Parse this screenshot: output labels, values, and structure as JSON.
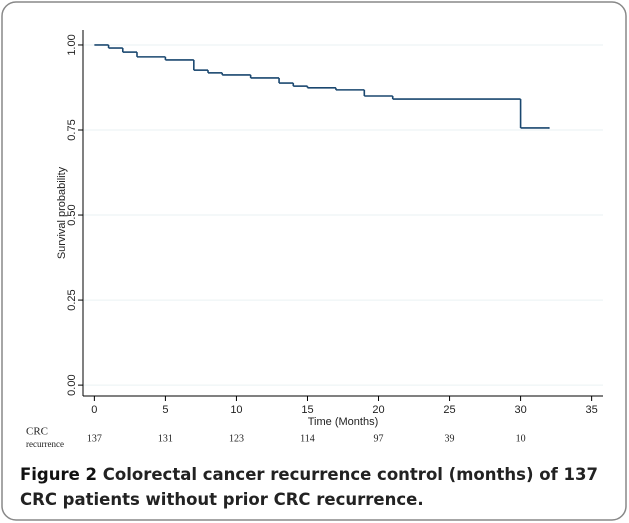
{
  "chart_data": {
    "type": "line",
    "step": "post",
    "x_label": "Time (Months)",
    "y_label": "Survival probability",
    "series": [
      {
        "color": "#1a476f",
        "x": [
          0,
          1,
          2,
          3,
          5,
          7,
          8,
          9,
          11,
          13,
          14,
          15,
          17,
          19,
          21,
          30,
          32
        ],
        "values": [
          1.0,
          0.991,
          0.979,
          0.965,
          0.956,
          0.926,
          0.918,
          0.912,
          0.903,
          0.888,
          0.879,
          0.874,
          0.868,
          0.85,
          0.841,
          0.756,
          0.756
        ]
      }
    ],
    "xlim": [
      -0.8,
      35.8
    ],
    "xticks": [
      0,
      5,
      10,
      15,
      20,
      25,
      30,
      35
    ],
    "ylim": [
      -0.032,
      1.044
    ],
    "yticks": [
      {
        "value": 0,
        "label": "0.00"
      },
      {
        "value": 0.25,
        "label": "0.25"
      },
      {
        "value": 0.5,
        "label": "0.50"
      },
      {
        "value": 0.75,
        "label": "0.75"
      },
      {
        "value": 1,
        "label": "1.00"
      }
    ],
    "grid": true,
    "risk_table": {
      "label": [
        "CRC",
        "recurrence"
      ],
      "x": [
        0,
        5,
        10,
        15,
        20,
        25,
        30
      ],
      "values": [
        137,
        131,
        123,
        114,
        97,
        39,
        10
      ]
    }
  },
  "caption": {
    "label": "Figure 2",
    "text": "Colorectal cancer recurrence control (months) of 137 CRC patients without prior CRC recurrence."
  }
}
